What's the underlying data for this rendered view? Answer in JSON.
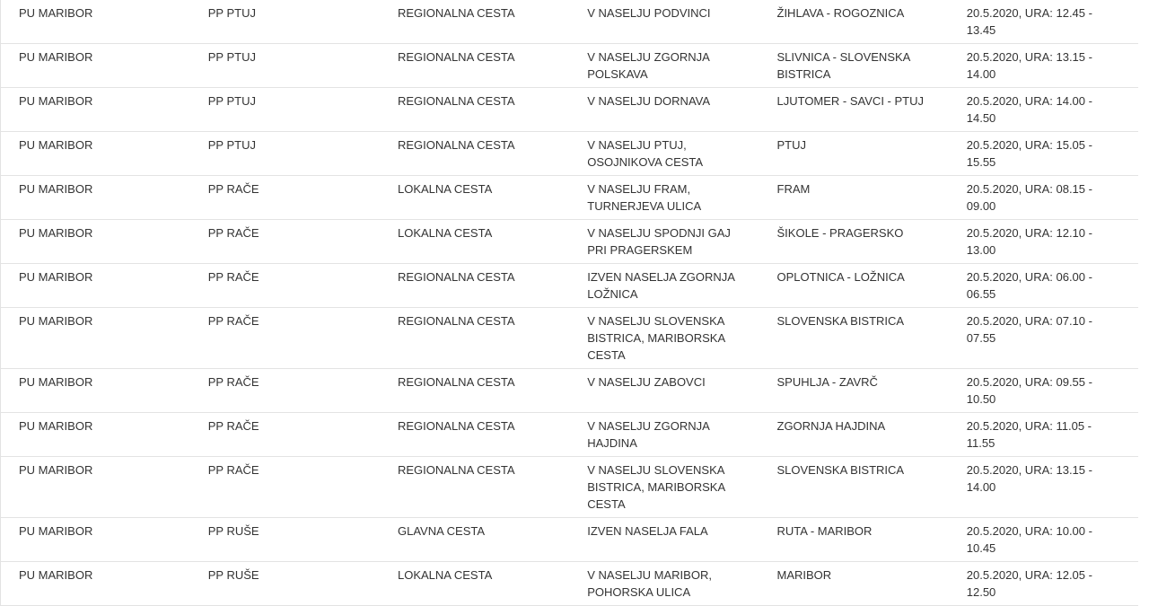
{
  "rows": [
    [
      "PU MARIBOR",
      "PP PTUJ",
      "REGIONALNA CESTA",
      "V NASELJU PODVINCI",
      "ŽIHLAVA - ROGOZNICA",
      "20.5.2020, URA: 12.45 - 13.45"
    ],
    [
      "PU MARIBOR",
      "PP PTUJ",
      "REGIONALNA CESTA",
      "V NASELJU ZGORNJA\nPOLSKAVA",
      "SLIVNICA - SLOVENSKA\nBISTRICA",
      "20.5.2020, URA: 13.15 - 14.00"
    ],
    [
      "PU MARIBOR",
      "PP PTUJ",
      "REGIONALNA CESTA",
      "V NASELJU DORNAVA",
      "LJUTOMER - SAVCI - PTUJ",
      "20.5.2020, URA: 14.00 - 14.50"
    ],
    [
      "PU MARIBOR",
      "PP PTUJ",
      "REGIONALNA CESTA",
      "V NASELJU PTUJ,\nOSOJNIKOVA CESTA",
      "PTUJ",
      "20.5.2020, URA: 15.05 - 15.55"
    ],
    [
      "PU MARIBOR",
      "PP RAČE",
      "LOKALNA CESTA",
      "V NASELJU FRAM,\nTURNERJEVA ULICA",
      "FRAM",
      "20.5.2020, URA: 08.15 - 09.00"
    ],
    [
      "PU MARIBOR",
      "PP RAČE",
      "LOKALNA CESTA",
      "V NASELJU SPODNJI GAJ\nPRI PRAGERSKEM",
      "ŠIKOLE - PRAGERSKO",
      "20.5.2020, URA: 12.10 - 13.00"
    ],
    [
      "PU MARIBOR",
      "PP RAČE",
      "REGIONALNA CESTA",
      "IZVEN NASELJA ZGORNJA\nLOŽNICA",
      "OPLOTNICA - LOŽNICA",
      "20.5.2020, URA: 06.00 - 06.55"
    ],
    [
      "PU MARIBOR",
      "PP RAČE",
      "REGIONALNA CESTA",
      "V NASELJU SLOVENSKA\nBISTRICA, MARIBORSKA\nCESTA",
      "SLOVENSKA BISTRICA",
      "20.5.2020, URA: 07.10 - 07.55"
    ],
    [
      "PU MARIBOR",
      "PP RAČE",
      "REGIONALNA CESTA",
      "V NASELJU ZABOVCI",
      "SPUHLJA - ZAVRČ",
      "20.5.2020, URA: 09.55 - 10.50"
    ],
    [
      "PU MARIBOR",
      "PP RAČE",
      "REGIONALNA CESTA",
      "V NASELJU ZGORNJA\nHAJDINA",
      "ZGORNJA HAJDINA",
      "20.5.2020, URA: 11.05 - 11.55"
    ],
    [
      "PU MARIBOR",
      "PP RAČE",
      "REGIONALNA CESTA",
      "V NASELJU SLOVENSKA\nBISTRICA, MARIBORSKA\nCESTA",
      "SLOVENSKA BISTRICA",
      "20.5.2020, URA: 13.15 - 14.00"
    ],
    [
      "PU MARIBOR",
      "PP RUŠE",
      "GLAVNA CESTA",
      "IZVEN NASELJA FALA",
      "RUTA - MARIBOR",
      "20.5.2020, URA: 10.00 - 10.45"
    ],
    [
      "PU MARIBOR",
      "PP RUŠE",
      "LOKALNA CESTA",
      "V NASELJU MARIBOR,\nPOHORSKA ULICA",
      "MARIBOR",
      "20.5.2020, URA: 12.05 - 12.50"
    ]
  ]
}
